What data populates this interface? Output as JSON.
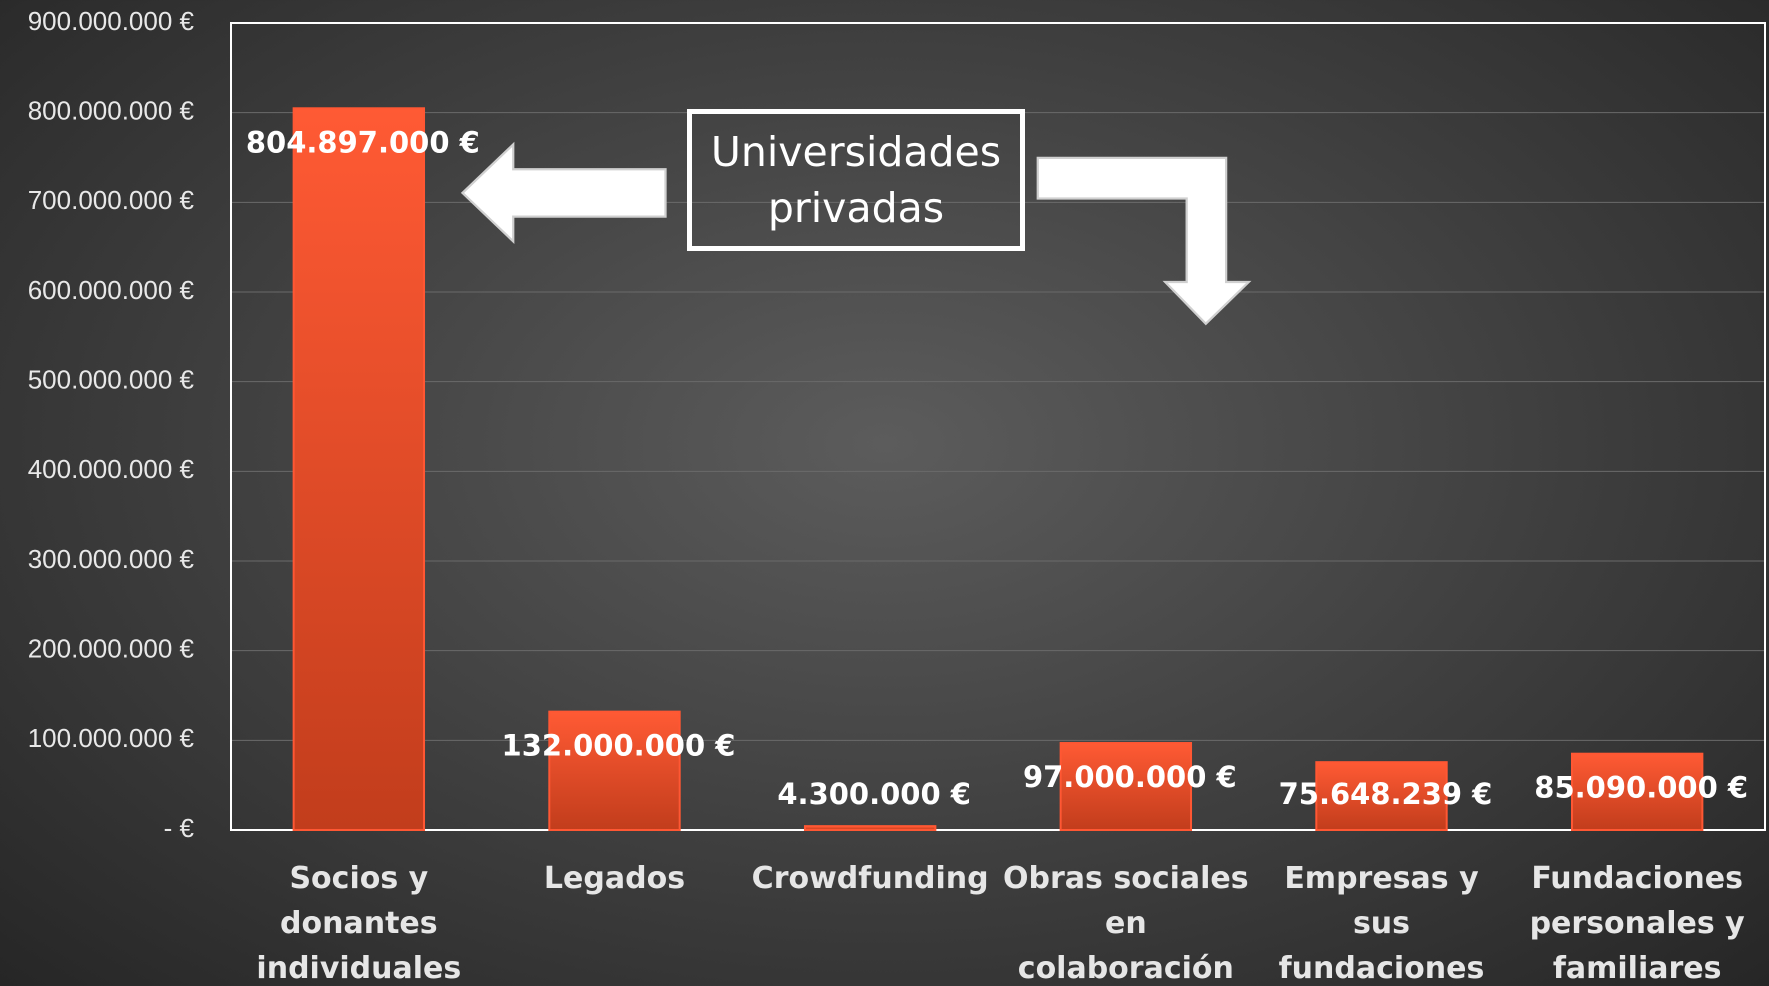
{
  "chart_data": {
    "type": "bar",
    "categories": [
      "Socios y donantes individuales",
      "Legados",
      "Crowdfunding",
      "Obras sociales en colaboración",
      "Empresas y sus fundaciones",
      "Fundaciones personales y familiares"
    ],
    "values": [
      804897000,
      132000000,
      4300000,
      97000000,
      75648239,
      85090000
    ],
    "value_labels": [
      "804.897.000 €",
      "132.000.000 €",
      "4.300.000 €",
      "97.000.000 €",
      "75.648.239 €",
      "85.090.000 €"
    ],
    "color": "#ff5733",
    "ylim": [
      0,
      900000000
    ],
    "yticks": [
      {
        "value": 0,
        "label": "-   €"
      },
      {
        "value": 100000000,
        "label": "100.000.000 €"
      },
      {
        "value": 200000000,
        "label": "200.000.000 €"
      },
      {
        "value": 300000000,
        "label": "300.000.000 €"
      },
      {
        "value": 400000000,
        "label": "400.000.000 €"
      },
      {
        "value": 500000000,
        "label": "500.000.000 €"
      },
      {
        "value": 600000000,
        "label": "600.000.000 €"
      },
      {
        "value": 700000000,
        "label": "700.000.000 €"
      },
      {
        "value": 800000000,
        "label": "800.000.000 €"
      },
      {
        "value": 900000000,
        "label": "900.000.000 €"
      }
    ],
    "grid": true,
    "annotation": "Universidades privadas"
  }
}
